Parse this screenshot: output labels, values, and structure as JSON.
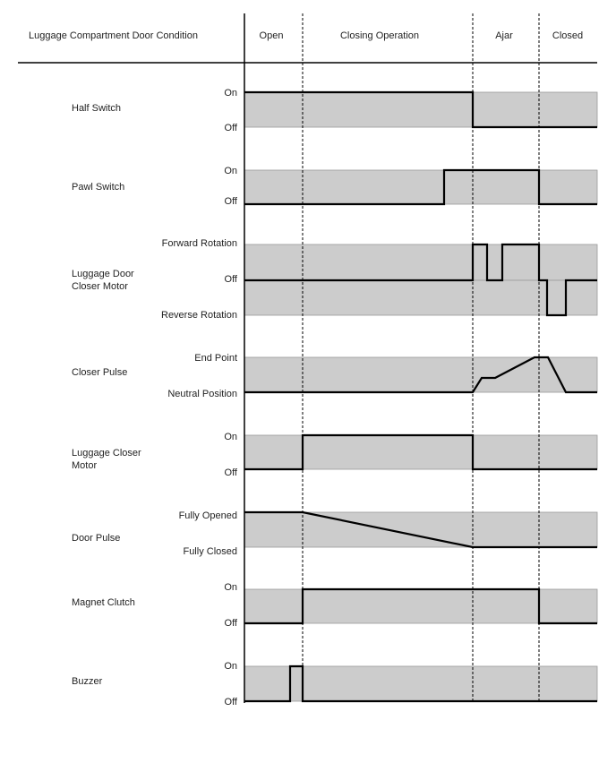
{
  "header": {
    "title": "Luggage Compartment Door Condition",
    "phases": [
      "Open",
      "Closing Operation",
      "Ajar",
      "Closed"
    ]
  },
  "signals": [
    {
      "name": "Half Switch",
      "levels": [
        "On",
        "Off"
      ]
    },
    {
      "name": "Pawl Switch",
      "levels": [
        "On",
        "Off"
      ]
    },
    {
      "name": "Luggage Door\nCloser Motor",
      "levels": [
        "Forward Rotation",
        "Off",
        "Reverse Rotation"
      ]
    },
    {
      "name": "Closer Pulse",
      "levels": [
        "End Point",
        "Neutral Position"
      ]
    },
    {
      "name": "Luggage Closer\nMotor",
      "levels": [
        "On",
        "Off"
      ]
    },
    {
      "name": "Door Pulse",
      "levels": [
        "Fully Opened",
        "Fully Closed"
      ]
    },
    {
      "name": "Magnet Clutch",
      "levels": [
        "On",
        "Off"
      ]
    },
    {
      "name": "Buzzer",
      "levels": [
        "On",
        "Off"
      ]
    }
  ],
  "colors": {
    "band": "#cccccc",
    "line": "#000000"
  }
}
